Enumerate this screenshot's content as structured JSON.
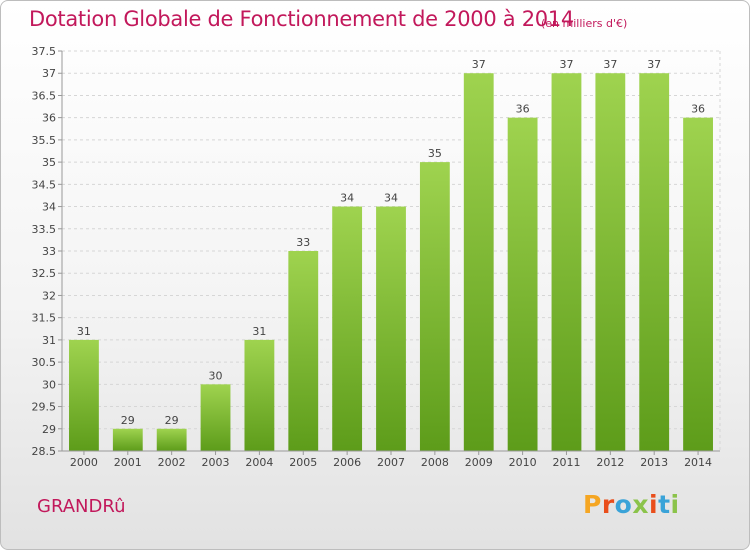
{
  "header": {
    "title": "Dotation Globale de Fonctionnement de 2000 à 2014",
    "subtitle": "(en milliers d'€)"
  },
  "footer": {
    "commune": "GRANDRû",
    "logo": "Proxiti"
  },
  "colors": {
    "title": "#c2185b",
    "bar_light": "#9fd34f",
    "bar_dark": "#5d9c1a",
    "logo": [
      "#f5a623",
      "#e94e1b",
      "#3aa3d8",
      "#8bc34a",
      "#e94e1b",
      "#3aa3d8",
      "#8bc34a"
    ]
  },
  "chart_data": {
    "type": "bar",
    "title": "Dotation Globale de Fonctionnement de 2000 à 2014",
    "subtitle": "(en milliers d'€)",
    "categories": [
      "2000",
      "2001",
      "2002",
      "2003",
      "2004",
      "2005",
      "2006",
      "2007",
      "2008",
      "2009",
      "2010",
      "2011",
      "2012",
      "2013",
      "2014"
    ],
    "values": [
      31,
      29,
      29,
      30,
      31,
      33,
      34,
      34,
      35,
      37,
      36,
      37,
      37,
      37,
      36
    ],
    "ylim": [
      28.5,
      37.5
    ],
    "yticks": [
      "37.5",
      "37",
      "36.5",
      "36",
      "35.5",
      "35",
      "34.5",
      "34",
      "33.5",
      "33",
      "32.5",
      "32",
      "31.5",
      "31",
      "30.5",
      "30",
      "29.5",
      "29",
      "28.5"
    ],
    "grid": true,
    "xlabel": "",
    "ylabel": ""
  }
}
